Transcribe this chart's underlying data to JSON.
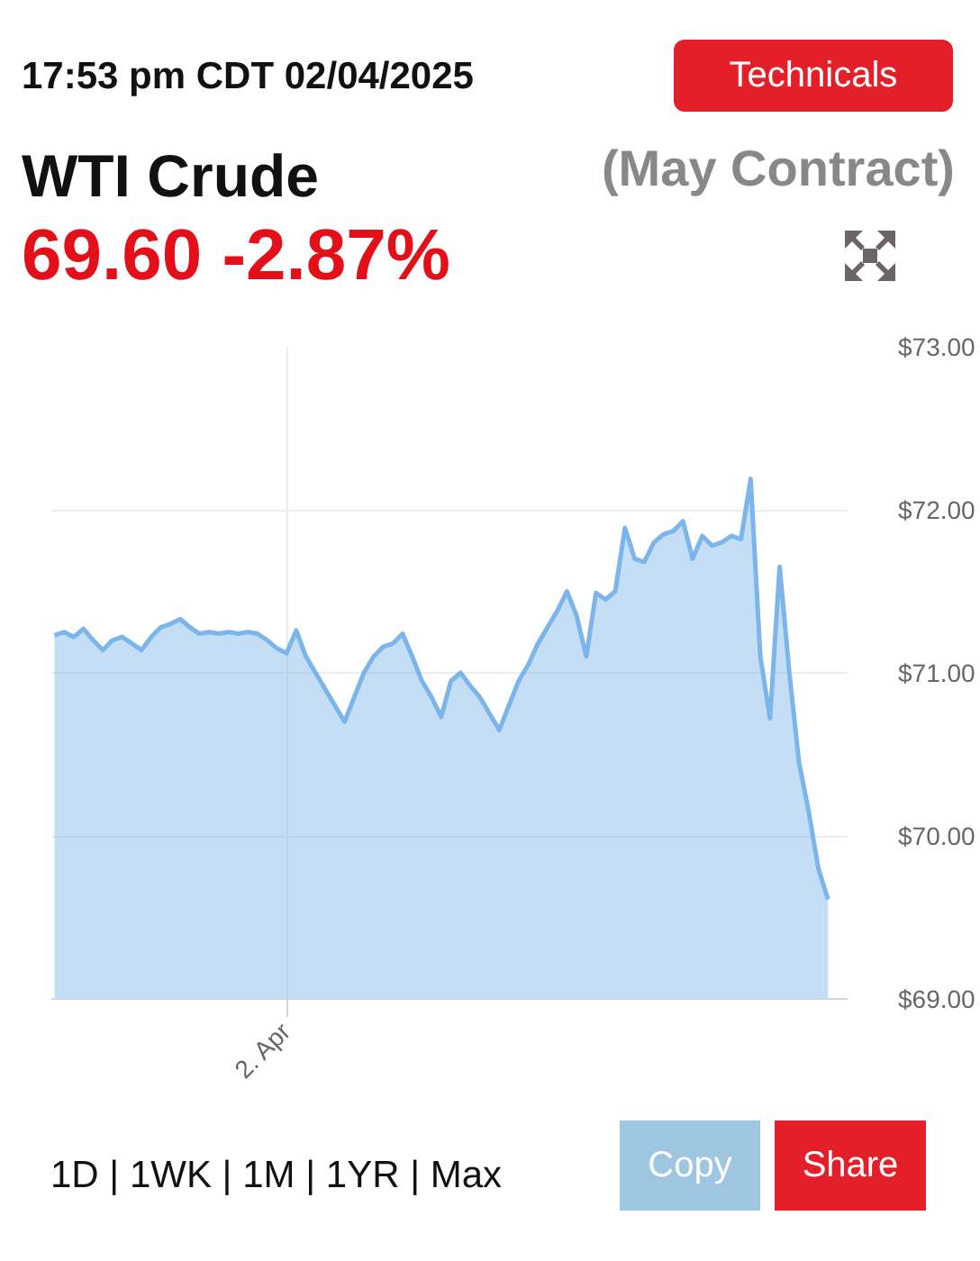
{
  "chart_data": {
    "type": "area",
    "title": "WTI Crude",
    "subtitle": "(May Contract)",
    "annotations": [
      "17:53 pm CDT 02/04/2025",
      "69.60 -2.87%",
      "Technicals",
      "1D | 1WK | 1M | 1YR | Max",
      "Copy",
      "Share"
    ],
    "categories": [
      null,
      null,
      null,
      null,
      null,
      null,
      null,
      null,
      null,
      null,
      null,
      null,
      null,
      null,
      null,
      null,
      null,
      null,
      null,
      null,
      null,
      null,
      null,
      null,
      "2. Apr",
      null,
      null,
      null,
      null,
      null,
      null,
      null,
      null,
      null,
      null,
      null,
      null,
      null,
      null,
      null,
      null,
      null,
      null,
      null,
      null,
      null,
      null,
      null,
      null,
      null,
      null,
      null,
      null,
      null,
      null,
      null,
      null,
      null,
      null,
      null,
      null,
      null,
      null,
      null,
      null,
      null,
      null,
      null,
      null,
      null,
      null,
      null,
      null,
      null,
      null,
      null,
      null,
      null,
      null,
      null,
      null
    ],
    "series": [
      {
        "color": "#7cb5ec",
        "values": [
          71.23,
          71.25,
          71.22,
          71.27,
          71.2,
          71.14,
          71.2,
          71.22,
          71.18,
          71.14,
          71.22,
          71.28,
          71.3,
          71.33,
          71.28,
          71.24,
          71.25,
          71.24,
          71.25,
          71.24,
          71.25,
          71.24,
          71.2,
          71.15,
          71.12,
          71.26,
          71.1,
          71.0,
          70.9,
          70.8,
          70.7,
          70.85,
          71.0,
          71.1,
          71.16,
          71.18,
          71.24,
          71.1,
          70.95,
          70.85,
          70.73,
          70.95,
          71.0,
          70.92,
          70.85,
          70.75,
          70.65,
          70.8,
          70.95,
          71.05,
          71.18,
          71.28,
          71.38,
          71.5,
          71.35,
          71.1,
          71.49,
          71.45,
          71.5,
          71.89,
          71.7,
          71.68,
          71.8,
          71.85,
          71.87,
          71.93,
          71.7,
          71.84,
          71.78,
          71.8,
          71.84,
          71.82,
          72.19,
          71.1,
          70.72,
          71.65,
          71.0,
          70.45,
          70.15,
          69.8,
          69.61
        ]
      }
    ],
    "ylim": [
      69,
      73
    ],
    "yticks": [
      {
        "value": 69,
        "label": "$69.00"
      },
      {
        "value": 70,
        "label": "$70.00"
      },
      {
        "value": 71,
        "label": "$71.00"
      },
      {
        "value": 72,
        "label": "$72.00"
      },
      {
        "value": 73,
        "label": "$73.00"
      }
    ],
    "grid": true,
    "marker": "none",
    "line_style": "solid"
  }
}
